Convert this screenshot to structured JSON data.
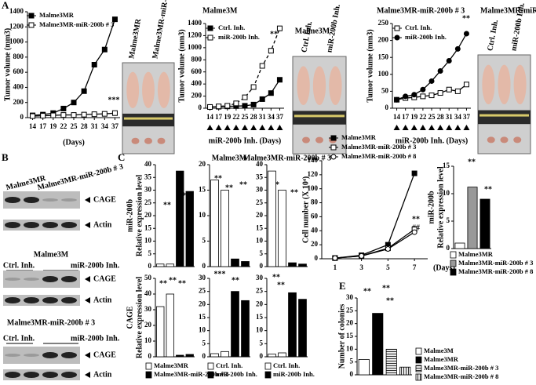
{
  "panel_labels": [
    "A",
    "B",
    "C",
    "D",
    "E"
  ],
  "photos": [
    {
      "labels": [
        "Malme3MR",
        "Malme3MR-miR-200b # 3"
      ]
    },
    {
      "title": "Malme3M",
      "labels": [
        "Ctrl. Inh.",
        "miR-200b Inh."
      ]
    },
    {
      "title": "Malme3MR-miR-200b # 3",
      "labels": [
        "Ctrl. Inh.",
        "miR-200b Inh."
      ]
    }
  ],
  "blots": [
    {
      "lanes": [
        "Malme3MR",
        "Malme3MR-miR-200b # 3"
      ],
      "bands": [
        "CAGE",
        "Actin"
      ]
    },
    {
      "title": "Malme3M",
      "lanes": [
        "Ctrl. Inh.",
        "miR-200b Inh."
      ],
      "bands": [
        "CAGE",
        "Actin"
      ]
    },
    {
      "title": "Malme3MR-miR-200b # 3",
      "lanes": [
        "Ctrl. Inh.",
        "miR-200b Inh."
      ],
      "bands": [
        "CAGE",
        "Actin"
      ]
    }
  ],
  "chart_data": [
    {
      "type": "line",
      "xlabel": "(Days)",
      "ylabel": "Tumor volume (mm3)",
      "categories": [
        "14",
        "17",
        "19",
        "22",
        "25",
        "28",
        "31",
        "34",
        "37"
      ],
      "ylim": [
        0,
        1400
      ],
      "yticks": [
        0,
        200,
        400,
        600,
        800,
        1000,
        1200,
        1400
      ],
      "series": [
        {
          "name": "Malme3MR",
          "color": "#000000",
          "marker": "square",
          "values": [
            30,
            40,
            60,
            120,
            200,
            350,
            700,
            900,
            1300
          ]
        },
        {
          "name": "Malme3MR-miR-200b # 3",
          "color": "#ffffff",
          "marker": "square",
          "values": [
            20,
            25,
            30,
            35,
            35,
            40,
            45,
            50,
            60
          ]
        }
      ],
      "annotations": [
        "***"
      ]
    },
    {
      "type": "line",
      "title": "Malme3M",
      "xlabel": "miR-200b Inh. (Days)",
      "ylabel": "Tumor volume (mm3)",
      "categories": [
        "14",
        "17",
        "19",
        "22",
        "25",
        "28",
        "31",
        "34",
        "37"
      ],
      "ylim": [
        0,
        1400
      ],
      "yticks": [
        0,
        200,
        400,
        600,
        800,
        1000,
        1200,
        1400
      ],
      "series": [
        {
          "name": "Ctrl. Inh.",
          "color": "#000000",
          "marker": "square",
          "values": [
            20,
            25,
            30,
            35,
            40,
            60,
            150,
            250,
            470
          ]
        },
        {
          "name": "miR-200b Inh.",
          "color": "#ffffff",
          "marker": "square",
          "dash": true,
          "values": [
            20,
            30,
            40,
            80,
            180,
            350,
            700,
            950,
            1320
          ]
        }
      ],
      "annotations": [
        "**"
      ]
    },
    {
      "type": "line",
      "title": "Malme3MR-miR-200b # 3",
      "xlabel": "miR-200b Inh. (Days)",
      "ylabel": "Tumor volume (mm3)",
      "categories": [
        "14",
        "17",
        "19",
        "22",
        "25",
        "28",
        "31",
        "34",
        "37"
      ],
      "ylim": [
        0,
        250
      ],
      "yticks": [
        0,
        50,
        100,
        150,
        200,
        250
      ],
      "series": [
        {
          "name": "Ctrl. Inh.",
          "color": "#ffffff",
          "marker": "square",
          "values": [
            25,
            30,
            32,
            35,
            38,
            45,
            55,
            50,
            70
          ]
        },
        {
          "name": "miR-200b Inh.",
          "color": "#000000",
          "marker": "circle",
          "values": [
            25,
            35,
            40,
            55,
            80,
            110,
            140,
            175,
            220
          ]
        }
      ],
      "annotations": [
        "**"
      ]
    },
    {
      "type": "bar",
      "ylabel": [
        "miR-200b",
        "Relative expression level"
      ],
      "categories": [
        null,
        null,
        null,
        null
      ],
      "ylim": [
        0,
        40
      ],
      "yticks": [
        0,
        5,
        10,
        15,
        20,
        25,
        30,
        35,
        40
      ],
      "series": [
        {
          "color": "#ffffff",
          "values": [
            1,
            1,
            null,
            null
          ]
        },
        {
          "color": "#000000",
          "values": [
            null,
            null,
            37.5,
            29.5
          ]
        }
      ],
      "annotations": [
        "**",
        "**"
      ]
    },
    {
      "type": "bar",
      "title": "Malme3M",
      "categories": [
        null,
        null,
        null,
        null
      ],
      "ylim": [
        0,
        20
      ],
      "yticks": [
        0,
        5,
        10,
        15,
        20
      ],
      "series": [
        {
          "color": "#ffffff",
          "values": [
            17,
            15,
            null,
            null
          ]
        },
        {
          "color": "#000000",
          "values": [
            null,
            null,
            1.5,
            1
          ]
        }
      ],
      "annotations": [
        "**",
        "**",
        "**"
      ]
    },
    {
      "type": "bar",
      "title": "Malme3MR-miR-200b # 3",
      "categories": [
        null,
        null,
        null,
        null
      ],
      "ylim": [
        0,
        40
      ],
      "yticks": [
        0,
        5,
        10,
        15,
        20,
        25,
        30,
        35,
        40
      ],
      "series": [
        {
          "color": "#ffffff",
          "values": [
            37.5,
            30,
            null,
            null
          ]
        },
        {
          "color": "#000000",
          "values": [
            null,
            null,
            1.5,
            1
          ]
        }
      ],
      "annotations": [
        "**",
        "**"
      ]
    },
    {
      "type": "bar",
      "ylabel": [
        "CAGE",
        "Relative expression level"
      ],
      "categories": [
        null,
        null,
        null,
        null
      ],
      "ylim": [
        0,
        50
      ],
      "yticks": [
        0,
        10,
        20,
        30,
        40,
        50
      ],
      "legend": true,
      "series": [
        {
          "name": "Malme3MR",
          "color": "#ffffff",
          "values": [
            32,
            40,
            null,
            null
          ]
        },
        {
          "name": "Malme3MR-miR-200b # 3",
          "color": "#000000",
          "values": [
            null,
            null,
            1,
            1.5
          ]
        }
      ],
      "annotations": [
        "**",
        "**",
        "**"
      ]
    },
    {
      "type": "bar",
      "categories": [
        null,
        null,
        null,
        null
      ],
      "ylim": [
        0,
        30
      ],
      "yticks": [
        0,
        5,
        10,
        15,
        20,
        25,
        30
      ],
      "legend": true,
      "series": [
        {
          "name": "Ctrl. Inh.",
          "color": "#ffffff",
          "values": [
            1.2,
            2,
            null,
            null
          ]
        },
        {
          "name": "miR-200b Inh.",
          "color": "#000000",
          "values": [
            null,
            null,
            25,
            21.5
          ]
        }
      ],
      "annotations": [
        "***",
        "**"
      ]
    },
    {
      "type": "bar",
      "categories": [
        null,
        null,
        null,
        null
      ],
      "ylim": [
        0,
        30
      ],
      "yticks": [
        0,
        5,
        10,
        15,
        20,
        25,
        30
      ],
      "legend": true,
      "series": [
        {
          "name": "Ctrl. Inh.",
          "color": "#ffffff",
          "values": [
            1,
            1.5,
            null,
            null
          ]
        },
        {
          "name": "miR-200b Inh.",
          "color": "#000000",
          "values": [
            null,
            null,
            24.5,
            22
          ]
        }
      ],
      "annotations": [
        "**",
        "**"
      ]
    },
    {
      "type": "line",
      "xlabel": "(Days)",
      "ylabel": "Cell number (X 10⁴)",
      "x": [
        1,
        3,
        5,
        7
      ],
      "xlim": [
        0,
        8
      ],
      "xticks": [
        1,
        3,
        5,
        7
      ],
      "ylim": [
        0,
        140
      ],
      "yticks": [
        0,
        20,
        40,
        60,
        80,
        100,
        120,
        140
      ],
      "series": [
        {
          "name": "Malme3MR",
          "color": "#000000",
          "marker": "square",
          "values": [
            1,
            5,
            20,
            122
          ]
        },
        {
          "name": "Malme3MR-miR-200b # 3",
          "color": "#ffffff",
          "marker": "square",
          "values": [
            1,
            4,
            15,
            42
          ]
        },
        {
          "name": "Malme3MR-miR-200b # 8",
          "color": "#ffffff",
          "marker": "circle",
          "values": [
            1,
            4,
            14,
            38
          ]
        }
      ],
      "annotations": [
        "**",
        "##"
      ]
    },
    {
      "type": "bar",
      "ylabel": [
        "miR-200b",
        "Relative expression level"
      ],
      "categories": [
        null,
        null,
        null
      ],
      "ylim": [
        0,
        15
      ],
      "yticks": [
        0,
        5,
        10,
        15
      ],
      "legend": true,
      "series": [
        {
          "name": "Malme3MR",
          "color": "#ffffff",
          "values": [
            1,
            null,
            null
          ]
        },
        {
          "name": "Malme3MR-miR-200b # 3",
          "color": "#999999",
          "values": [
            null,
            11.2,
            null
          ]
        },
        {
          "name": "Malme3MR-miR-200b # 8",
          "color": "#000000",
          "values": [
            null,
            null,
            9
          ]
        }
      ],
      "annotations": [
        "**",
        "**"
      ]
    },
    {
      "type": "bar",
      "ylabel": "Number of colonies",
      "categories": [
        null,
        null,
        null,
        null
      ],
      "ylim": [
        0,
        30
      ],
      "yticks": [
        0,
        5,
        10,
        15,
        20,
        25,
        30
      ],
      "legend": true,
      "series": [
        {
          "name": "Malme3M",
          "color": "#ffffff",
          "values": [
            6,
            null,
            null,
            null
          ]
        },
        {
          "name": "Malme3MR",
          "color": "#000000",
          "values": [
            null,
            24,
            null,
            null
          ]
        },
        {
          "name": "Malme3MR-miR-200b # 3",
          "color": "#666666",
          "pattern": "horizontal",
          "values": [
            null,
            null,
            10,
            null
          ]
        },
        {
          "name": "Malme3MR-miR-200b # 8",
          "color": "#666666",
          "pattern": "vertical",
          "values": [
            null,
            null,
            null,
            3
          ]
        }
      ],
      "annotations": [
        "**",
        "**",
        "**"
      ]
    }
  ]
}
